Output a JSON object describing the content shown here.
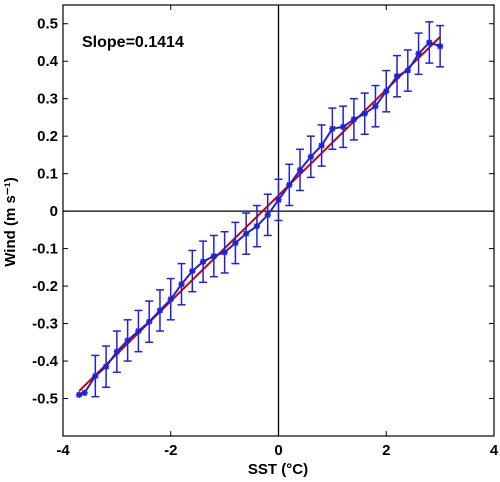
{
  "chart_data": {
    "type": "line",
    "title": "",
    "xlabel": "SST (°C)",
    "ylabel": "Wind (m s⁻¹)",
    "annotation": "Slope=0.1414",
    "xlim": [
      -4,
      4
    ],
    "ylim": [
      -0.6,
      0.55
    ],
    "xticks": [
      -4,
      -2,
      0,
      2,
      4
    ],
    "yticks": [
      -0.5,
      -0.4,
      -0.3,
      -0.2,
      -0.1,
      0,
      0.1,
      0.2,
      0.3,
      0.4,
      0.5
    ],
    "zero_lines": true,
    "grid": false,
    "colors": {
      "data": "#1f22d6",
      "fit": "#cc0000",
      "axes": "#000000"
    },
    "fit": {
      "slope": 0.1414,
      "x": [
        -3.7,
        3.0
      ],
      "y": [
        -0.48,
        0.465
      ]
    },
    "series": [
      {
        "x": [
          -3.7,
          -3.6,
          -3.4,
          -3.2,
          -3.0,
          -2.8,
          -2.6,
          -2.4,
          -2.2,
          -2.0,
          -1.8,
          -1.6,
          -1.4,
          -1.2,
          -1.0,
          -0.8,
          -0.6,
          -0.4,
          -0.2,
          0.0,
          0.2,
          0.4,
          0.6,
          0.8,
          1.0,
          1.2,
          1.4,
          1.6,
          1.8,
          2.0,
          2.2,
          2.4,
          2.6,
          2.8,
          3.0
        ],
        "y": [
          -0.49,
          -0.485,
          -0.44,
          -0.415,
          -0.375,
          -0.345,
          -0.32,
          -0.295,
          -0.265,
          -0.235,
          -0.195,
          -0.16,
          -0.135,
          -0.12,
          -0.11,
          -0.085,
          -0.06,
          -0.04,
          -0.01,
          0.03,
          0.07,
          0.11,
          0.145,
          0.175,
          0.22,
          0.225,
          0.245,
          0.26,
          0.28,
          0.32,
          0.36,
          0.375,
          0.42,
          0.45,
          0.44
        ],
        "err": [
          0,
          0,
          0.055,
          0.055,
          0.055,
          0.055,
          0.055,
          0.055,
          0.055,
          0.055,
          0.055,
          0.055,
          0.055,
          0.055,
          0.055,
          0.055,
          0.055,
          0.055,
          0.055,
          0.055,
          0.055,
          0.055,
          0.055,
          0.055,
          0.055,
          0.055,
          0.055,
          0.055,
          0.055,
          0.055,
          0.055,
          0.055,
          0.055,
          0.055,
          0.055
        ]
      }
    ]
  }
}
